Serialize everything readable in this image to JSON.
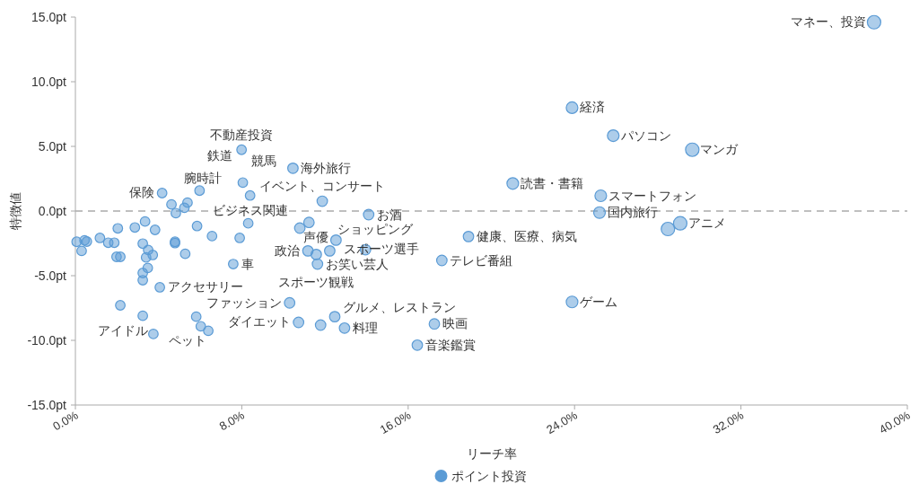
{
  "chart_data": {
    "type": "bubble",
    "xlabel": "リーチ率",
    "ylabel": "特徴値",
    "xlim": [
      0,
      40
    ],
    "ylim": [
      -15,
      15
    ],
    "xticks": [
      {
        "value": 0,
        "label": "0.0%"
      },
      {
        "value": 8,
        "label": "8.0%"
      },
      {
        "value": 16,
        "label": "16.0%"
      },
      {
        "value": 24,
        "label": "24.0%"
      },
      {
        "value": 32,
        "label": "32.0%"
      },
      {
        "value": 40,
        "label": "40.0%"
      }
    ],
    "yticks": [
      {
        "value": -15,
        "label": "-15.0pt"
      },
      {
        "value": -10,
        "label": "-10.0pt"
      },
      {
        "value": -5,
        "label": "-5.0pt"
      },
      {
        "value": 0,
        "label": "0.0pt"
      },
      {
        "value": 5,
        "label": "5.0pt"
      },
      {
        "value": 10,
        "label": "10.0pt"
      },
      {
        "value": 15,
        "label": "15.0pt"
      }
    ],
    "grid": false,
    "legend": "bottom",
    "ref_lines": [
      {
        "axis": "y",
        "value": 0,
        "color": "#aaaaaa",
        "line_style": "dashed"
      }
    ],
    "series": [
      {
        "name": "ポイント投資",
        "color": "#5b9bd5",
        "x": [
          38.4,
          23.88,
          25.86,
          29.66,
          21.03,
          25.26,
          25.2,
          28.49,
          29.08,
          18.9,
          23.88,
          17.62,
          17.26,
          16.44,
          7.99,
          8.05,
          8.4,
          4.17,
          5.97,
          4.62,
          5.39,
          5.24,
          4.83,
          3.35,
          2.04,
          2.86,
          3.83,
          5.85,
          8.31,
          6.57,
          7.9,
          0.06,
          0.44,
          0.55,
          0.3,
          1.18,
          1.58,
          1.87,
          3.24,
          4.79,
          4.79,
          3.5,
          1.98,
          2.16,
          3.4,
          3.72,
          5.28,
          3.48,
          3.24,
          3.24,
          7.59,
          4.06,
          2.16,
          3.24,
          3.75,
          5.81,
          6.03,
          6.39,
          10.3,
          10.46,
          11.87,
          14.1,
          11.23,
          10.79,
          12.53,
          11.18,
          11.58,
          12.23,
          13.95,
          11.64,
          12.47,
          10.73,
          11.79,
          12.94
        ],
        "values": [
          14.6,
          7.99,
          5.83,
          4.74,
          2.13,
          1.18,
          -0.12,
          -1.39,
          -0.95,
          -1.97,
          -7.03,
          -3.82,
          -8.73,
          -10.37,
          4.74,
          2.2,
          1.2,
          1.39,
          1.58,
          0.51,
          0.65,
          0.25,
          -0.16,
          -0.81,
          -1.34,
          -1.27,
          -1.46,
          -1.16,
          -0.95,
          -1.94,
          -2.08,
          -2.38,
          -2.27,
          -2.36,
          -3.08,
          -2.08,
          -2.45,
          -2.45,
          -2.52,
          -2.38,
          -2.48,
          -3.01,
          -3.54,
          -3.54,
          -3.59,
          -3.4,
          -3.31,
          -4.4,
          -4.79,
          -5.35,
          -4.1,
          -5.9,
          -7.29,
          -8.1,
          -9.51,
          -8.17,
          -8.91,
          -9.26,
          -7.1,
          3.31,
          0.76,
          -0.28,
          -0.88,
          -1.32,
          -2.25,
          -3.08,
          -3.36,
          -3.08,
          -2.99,
          -4.1,
          -8.17,
          -8.61,
          -8.82,
          -9.05
        ],
        "sizes": [
          1,
          0.75,
          0.75,
          1,
          0.75,
          0.75,
          0.75,
          1,
          1,
          0.6,
          0.75,
          0.6,
          0.6,
          0.6,
          0.5,
          0.5,
          0.5,
          0.5,
          0.5,
          0.5,
          0.5,
          0.5,
          0.5,
          0.5,
          0.5,
          0.5,
          0.5,
          0.5,
          0.5,
          0.5,
          0.5,
          0.5,
          0.5,
          0.5,
          0.5,
          0.5,
          0.5,
          0.5,
          0.5,
          0.5,
          0.5,
          0.5,
          0.5,
          0.5,
          0.5,
          0.5,
          0.5,
          0.5,
          0.5,
          0.5,
          0.5,
          0.5,
          0.5,
          0.5,
          0.5,
          0.5,
          0.5,
          0.5,
          0.6,
          0.6,
          0.6,
          0.6,
          0.6,
          0.6,
          0.6,
          0.6,
          0.6,
          0.6,
          0.6,
          0.6,
          0.6,
          0.6,
          0.6,
          0.6
        ]
      }
    ],
    "annotations": [
      {
        "text": "マネー、投資",
        "x": 38.4,
        "y": 14.6
      },
      {
        "text": "経済",
        "x": 23.88,
        "y": 7.99
      },
      {
        "text": "パソコン",
        "x": 25.86,
        "y": 5.83
      },
      {
        "text": "マンガ",
        "x": 29.66,
        "y": 4.74
      },
      {
        "text": "読書・書籍",
        "x": 21.03,
        "y": 2.13
      },
      {
        "text": "スマートフォン",
        "x": 25.26,
        "y": 1.18
      },
      {
        "text": "国内旅行",
        "x": 25.2,
        "y": -0.12
      },
      {
        "text": "アニメ",
        "x": 29.08,
        "y": -0.95
      },
      {
        "text": "健康、医療、病気",
        "x": 18.9,
        "y": -1.97
      },
      {
        "text": "テレビ番組",
        "x": 17.62,
        "y": -3.82
      },
      {
        "text": "ゲーム",
        "x": 23.88,
        "y": -7.03
      },
      {
        "text": "映画",
        "x": 17.26,
        "y": -8.73
      },
      {
        "text": "音楽鑑賞",
        "x": 16.44,
        "y": -10.37
      },
      {
        "text": "料理",
        "x": 12.94,
        "y": -9.05
      },
      {
        "text": "グルメ、レストラン",
        "x": 12.47,
        "y": -8.17
      },
      {
        "text": "ダイエット",
        "x": 10.73,
        "y": -8.61
      },
      {
        "text": "ファッション",
        "x": 10.3,
        "y": -7.1
      },
      {
        "text": "ペット",
        "x": 6.03,
        "y": -8.91
      },
      {
        "text": "アイドル",
        "x": 3.24,
        "y": -8.1
      },
      {
        "text": "アクセサリー",
        "x": 4.06,
        "y": -5.9
      },
      {
        "text": "車",
        "x": 7.59,
        "y": -4.1
      },
      {
        "text": "お笑い芸人",
        "x": 11.64,
        "y": -4.1
      },
      {
        "text": "スポーツ観戦",
        "x": 11.58,
        "y": -3.36
      },
      {
        "text": "ショッピング",
        "x": 12.23,
        "y": -3.08
      },
      {
        "text": "政治",
        "x": 11.18,
        "y": -3.08
      },
      {
        "text": "スポーツ選手",
        "x": 12.53,
        "y": -2.25
      },
      {
        "text": "声優",
        "x": 11.23,
        "y": -0.88
      },
      {
        "text": "お酒",
        "x": 14.1,
        "y": -0.28
      },
      {
        "text": "イベント、コンサート",
        "x": 11.87,
        "y": 0.76
      },
      {
        "text": "ビジネス関連",
        "x": 8.4,
        "y": 1.2
      },
      {
        "text": "腕時計",
        "x": 4.83,
        "y": -0.16
      },
      {
        "text": "保険",
        "x": 4.17,
        "y": 1.39
      },
      {
        "text": "鉄道",
        "x": 5.97,
        "y": 1.58
      },
      {
        "text": "競馬",
        "x": 8.05,
        "y": 2.2
      },
      {
        "text": "不動産投資",
        "x": 7.99,
        "y": 4.74
      },
      {
        "text": "海外旅行",
        "x": 10.46,
        "y": 3.31
      }
    ]
  }
}
